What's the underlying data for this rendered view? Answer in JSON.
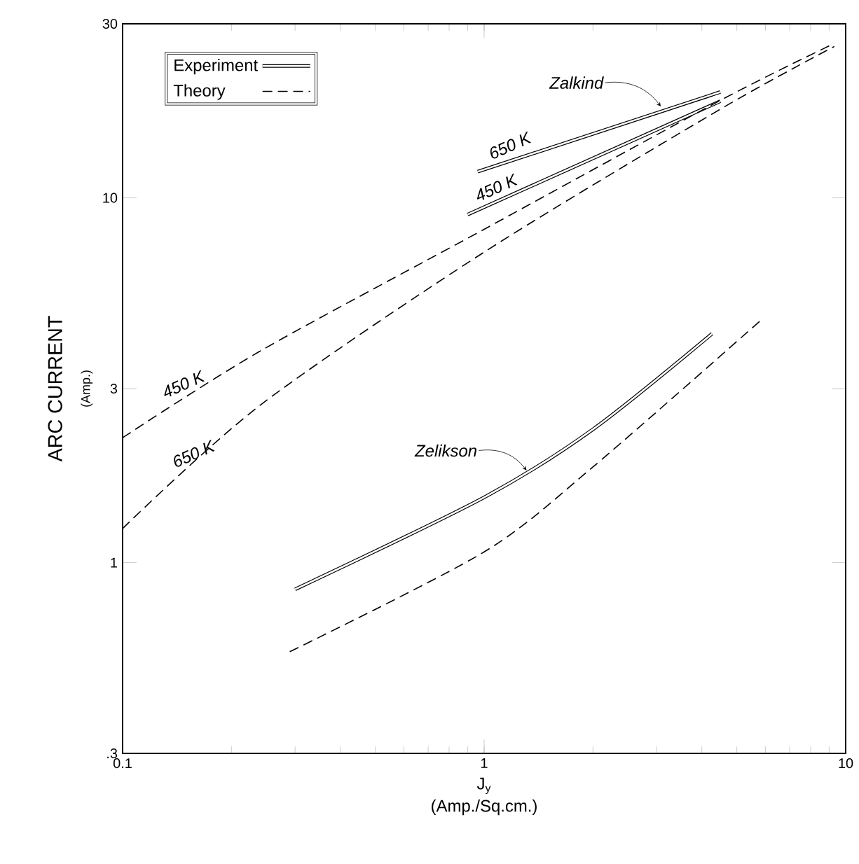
{
  "chart_data": {
    "type": "line",
    "xlabel": "J$_{y}$",
    "ylabel": "ARC CURRENT",
    "log": "xy",
    "legend": "top left",
    "grid": false,
    "xlim": [
      0.1,
      10
    ],
    "ylim": [
      0.3,
      30
    ],
    "xticks": [
      {
        "value": 0.1,
        "label": "0.1"
      },
      1,
      10
    ],
    "yticks": [
      {
        "value": 0.3,
        "label": ".3"
      },
      1,
      3,
      10,
      30
    ],
    "series": [
      {
        "name": "Experiment",
        "color": "#000000",
        "line_style": "solid",
        "x": [
          0.96,
          4.5
        ],
        "values": [
          11.8,
          19.5
        ]
      },
      {
        "color": "#000000",
        "line_style": "solid",
        "x": [
          0.9,
          4.5
        ],
        "values": [
          9.0,
          18.4
        ]
      },
      {
        "name": "Theory",
        "color": "#000000",
        "line_style": "dashed",
        "x": [
          0.1,
          0.24,
          1,
          4.5,
          9.3
        ],
        "values": [
          2.2,
          3.8,
          8.2,
          18.5,
          26.5
        ]
      },
      {
        "color": "#000000",
        "line_style": "dashed",
        "x": [
          0.1,
          0.24,
          1,
          4.5,
          9.3
        ],
        "values": [
          1.24,
          2.7,
          7.1,
          17.5,
          26.0
        ]
      },
      {
        "color": "#000000",
        "line_style": "solid",
        "x": [
          0.3,
          1,
          2,
          4.27
        ],
        "values": [
          0.845,
          1.51,
          2.32,
          4.24
        ]
      },
      {
        "color": "#000000",
        "line_style": "dashed",
        "x": [
          0.29,
          1,
          2,
          5.8
        ],
        "values": [
          0.57,
          1.07,
          1.83,
          4.6
        ]
      }
    ],
    "annotations": [
      {
        "text": "Zalkind",
        "x": 3.08,
        "y": 17.8
      },
      {
        "text": "Zelikson",
        "x": 1.31,
        "y": 1.79
      },
      {
        "text": "650 K",
        "x": 1.2,
        "y": 13.3
      },
      {
        "text": "450 K",
        "x": 1.1,
        "y": 10.2
      },
      {
        "text": "450 K",
        "x": 0.15,
        "y": 2.95
      },
      {
        "text": "650 K",
        "x": 0.16,
        "y": 1.9
      },
      "(Amp.)",
      "(Amp./Sq.cm.)"
    ]
  }
}
